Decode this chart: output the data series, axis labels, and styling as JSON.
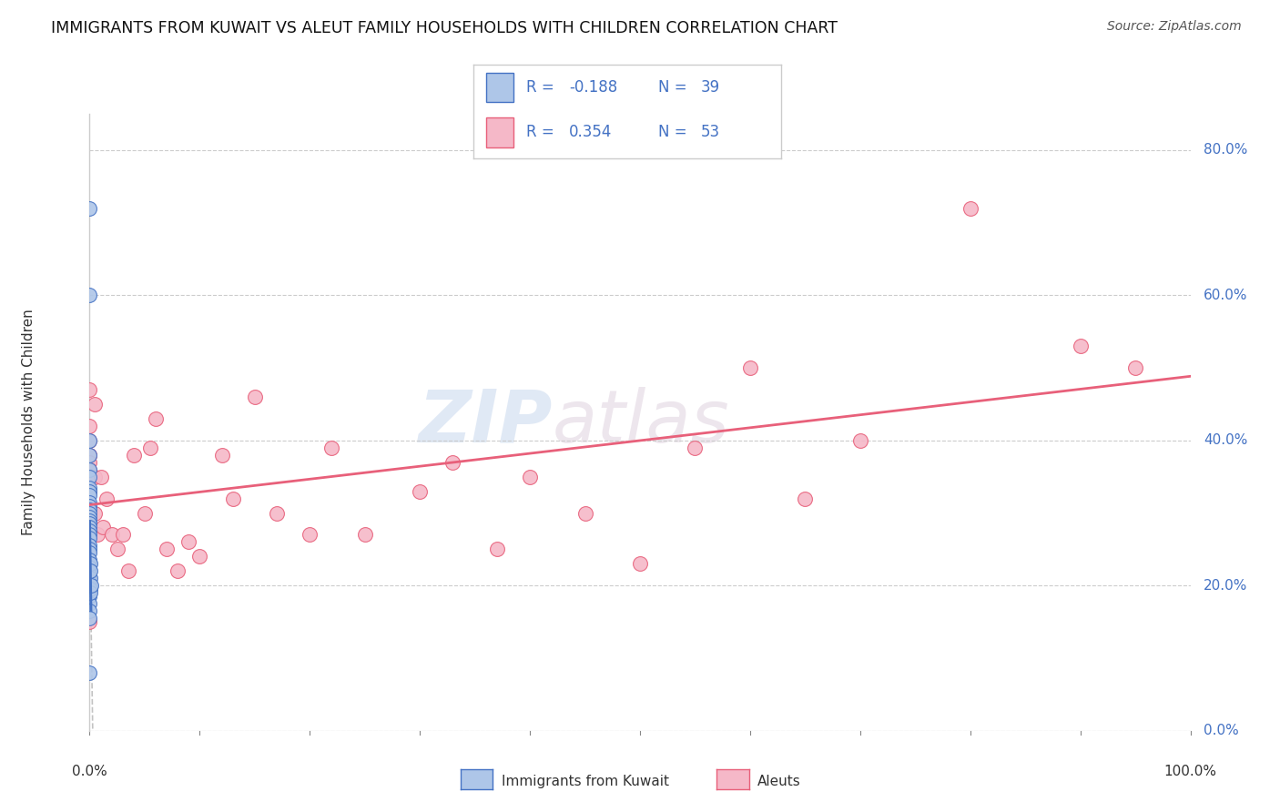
{
  "title": "IMMIGRANTS FROM KUWAIT VS ALEUT FAMILY HOUSEHOLDS WITH CHILDREN CORRELATION CHART",
  "source": "Source: ZipAtlas.com",
  "ylabel": "Family Households with Children",
  "color_kuwait": "#aec6e8",
  "color_aleut": "#f5b8c8",
  "color_kuwait_line": "#4472c4",
  "color_aleut_line": "#e8607a",
  "color_grid": "#cccccc",
  "background_color": "#ffffff",
  "watermark_zip": "ZIP",
  "watermark_atlas": "atlas",
  "kuwait_x": [
    0.0,
    0.0,
    0.0,
    0.0,
    0.0,
    0.0,
    0.0,
    0.0,
    0.0,
    0.0,
    0.0,
    0.0,
    0.0,
    0.0,
    0.0,
    0.0,
    0.0,
    0.0,
    0.0,
    0.0,
    0.0,
    0.0,
    0.0,
    0.0,
    0.0,
    0.0,
    0.0,
    0.0,
    0.0,
    0.0,
    0.0,
    0.0,
    0.0,
    0.0003,
    0.0005,
    0.0006,
    0.0007,
    0.0008,
    0.0012
  ],
  "kuwait_y": [
    0.72,
    0.6,
    0.4,
    0.38,
    0.36,
    0.35,
    0.335,
    0.33,
    0.325,
    0.315,
    0.31,
    0.305,
    0.3,
    0.295,
    0.29,
    0.285,
    0.28,
    0.275,
    0.27,
    0.265,
    0.255,
    0.25,
    0.245,
    0.235,
    0.225,
    0.215,
    0.205,
    0.195,
    0.185,
    0.175,
    0.165,
    0.155,
    0.08,
    0.21,
    0.195,
    0.23,
    0.19,
    0.22,
    0.2
  ],
  "aleut_x": [
    0.0,
    0.0,
    0.0,
    0.0,
    0.0,
    0.0,
    0.0,
    0.0,
    0.0,
    0.0,
    0.0,
    0.0,
    0.0,
    0.0,
    0.005,
    0.005,
    0.005,
    0.007,
    0.01,
    0.012,
    0.015,
    0.02,
    0.025,
    0.03,
    0.035,
    0.04,
    0.05,
    0.055,
    0.06,
    0.07,
    0.08,
    0.09,
    0.1,
    0.12,
    0.13,
    0.15,
    0.17,
    0.2,
    0.22,
    0.25,
    0.3,
    0.33,
    0.37,
    0.4,
    0.45,
    0.5,
    0.55,
    0.6,
    0.65,
    0.7,
    0.8,
    0.9,
    0.95
  ],
  "aleut_y": [
    0.47,
    0.42,
    0.4,
    0.38,
    0.38,
    0.37,
    0.36,
    0.35,
    0.33,
    0.31,
    0.3,
    0.29,
    0.28,
    0.15,
    0.45,
    0.35,
    0.3,
    0.27,
    0.35,
    0.28,
    0.32,
    0.27,
    0.25,
    0.27,
    0.22,
    0.38,
    0.3,
    0.39,
    0.43,
    0.25,
    0.22,
    0.26,
    0.24,
    0.38,
    0.32,
    0.46,
    0.3,
    0.27,
    0.39,
    0.27,
    0.33,
    0.37,
    0.25,
    0.35,
    0.3,
    0.23,
    0.39,
    0.5,
    0.32,
    0.4,
    0.72,
    0.53,
    0.5
  ],
  "xmin": 0.0,
  "xmax": 1.0,
  "ymin": 0.0,
  "ymax": 0.85,
  "yticks": [
    0.0,
    0.2,
    0.4,
    0.6,
    0.8
  ],
  "ytick_labels": [
    "0.0%",
    "20.0%",
    "40.0%",
    "60.0%",
    "80.0%"
  ],
  "xtick_left": "0.0%",
  "xtick_right": "100.0%",
  "legend_r1": "-0.188",
  "legend_n1": "39",
  "legend_r2": "0.354",
  "legend_n2": "53",
  "legend_series1": "Immigrants from Kuwait",
  "legend_series2": "Aleuts",
  "blue_text": "#4472c4",
  "dark_text": "#222222"
}
